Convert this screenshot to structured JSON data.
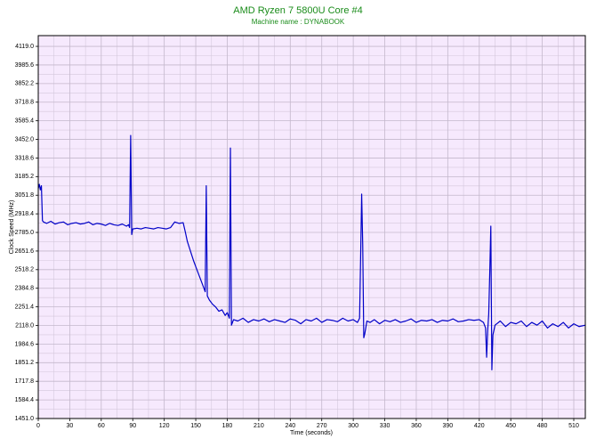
{
  "chart_data": {
    "type": "line",
    "title": "AMD Ryzen 7 5800U Core #4",
    "subtitle": "Machine name : DYNABOOK",
    "x_label": "Time (seconds)",
    "y_label": "Clock Speed (MHz)",
    "x": [
      0,
      1,
      2,
      3,
      4,
      5,
      8,
      12,
      16,
      20,
      24,
      28,
      32,
      36,
      40,
      44,
      48,
      52,
      56,
      60,
      64,
      68,
      72,
      76,
      80,
      84,
      86,
      87,
      88,
      89,
      90,
      94,
      98,
      102,
      106,
      110,
      114,
      118,
      122,
      126,
      130,
      134,
      138,
      140,
      142,
      145,
      148,
      151,
      154,
      157,
      159,
      160,
      161,
      163,
      166,
      169,
      172,
      175,
      178,
      180,
      182,
      183,
      184,
      186,
      190,
      195,
      200,
      205,
      210,
      215,
      220,
      225,
      230,
      235,
      240,
      245,
      250,
      255,
      260,
      265,
      270,
      275,
      280,
      285,
      290,
      295,
      300,
      304,
      306,
      307,
      308,
      309,
      310,
      311,
      313,
      316,
      320,
      325,
      330,
      335,
      340,
      345,
      350,
      355,
      360,
      365,
      370,
      375,
      380,
      385,
      390,
      395,
      400,
      405,
      410,
      415,
      420,
      424,
      426,
      427,
      428,
      429,
      430,
      431,
      432,
      433,
      435,
      440,
      445,
      450,
      455,
      460,
      465,
      470,
      475,
      480,
      485,
      490,
      495,
      500,
      505,
      510,
      515,
      521
    ],
    "series": [
      {
        "name": "Core #4",
        "color": "#0000c8",
        "values": [
          3100,
          3130,
          3090,
          3120,
          2870,
          2860,
          2850,
          2865,
          2845,
          2855,
          2860,
          2840,
          2850,
          2855,
          2845,
          2850,
          2860,
          2840,
          2850,
          2845,
          2835,
          2850,
          2840,
          2835,
          2845,
          2830,
          2840,
          2820,
          3480,
          2770,
          2810,
          2815,
          2810,
          2820,
          2815,
          2810,
          2820,
          2815,
          2810,
          2820,
          2860,
          2850,
          2855,
          2790,
          2720,
          2650,
          2580,
          2520,
          2460,
          2400,
          2360,
          3120,
          2330,
          2300,
          2270,
          2250,
          2220,
          2230,
          2190,
          2210,
          2170,
          3390,
          2120,
          2160,
          2150,
          2170,
          2140,
          2160,
          2150,
          2165,
          2145,
          2160,
          2150,
          2140,
          2165,
          2155,
          2130,
          2160,
          2150,
          2170,
          2140,
          2160,
          2155,
          2145,
          2170,
          2150,
          2160,
          2140,
          2170,
          2600,
          3060,
          2700,
          2030,
          2060,
          2150,
          2140,
          2160,
          2130,
          2155,
          2145,
          2160,
          2140,
          2150,
          2165,
          2140,
          2155,
          2150,
          2160,
          2140,
          2155,
          2150,
          2165,
          2145,
          2150,
          2160,
          2155,
          2160,
          2140,
          2100,
          1890,
          2080,
          2200,
          2500,
          2830,
          1800,
          2050,
          2120,
          2150,
          2110,
          2140,
          2130,
          2150,
          2110,
          2140,
          2120,
          2150,
          2100,
          2130,
          2110,
          2140,
          2100,
          2130,
          2110,
          2120
        ]
      }
    ],
    "xlim": [
      0,
      521
    ],
    "xticks": [
      0,
      30,
      60,
      90,
      120,
      150,
      180,
      210,
      240,
      270,
      300,
      330,
      360,
      390,
      420,
      450,
      480,
      510
    ],
    "ylim": [
      1451,
      4196
    ],
    "yticks": [
      {
        "value": 1451,
        "label": "1451.0"
      },
      1584.4,
      1717.8,
      1851.2,
      1984.6,
      {
        "value": 2118,
        "label": "2118.0"
      },
      2251.4,
      2384.8,
      2518.2,
      2651.6,
      {
        "value": 2785,
        "label": "2785.0"
      },
      2918.4,
      3051.8,
      3185.2,
      3318.6,
      {
        "value": 3452,
        "label": "3452.0"
      },
      3585.4,
      3718.8,
      3852.2,
      3985.6,
      {
        "value": 4119,
        "label": "4119.0"
      }
    ],
    "grid": true
  }
}
